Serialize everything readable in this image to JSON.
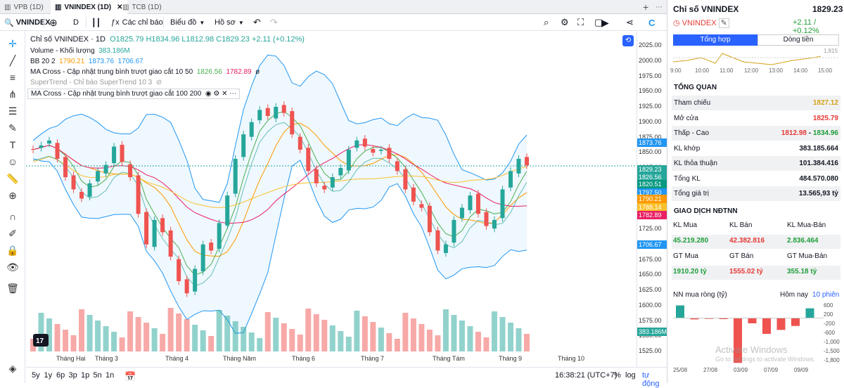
{
  "tabs": [
    {
      "label": "VPB (1D)"
    },
    {
      "label": "VNINDEX (1D)"
    },
    {
      "label": "TCB (1D)"
    }
  ],
  "toolbar": {
    "symbol": "VNINDEX",
    "interval": "D",
    "indicators": "Các chỉ báo",
    "chart_type": "Biểu đồ",
    "profile": "Hồ sơ"
  },
  "legend": {
    "title": "Chỉ số VNINDEX · 1D",
    "ohlc": "O1825.79 H1834.96 L1812.98 C1829.23 +2.11 (+0.12%)",
    "volume_label": "Volume - Khối lượng",
    "volume_value": "383.186M",
    "bb_label": "BB 20 2",
    "bb_v1": "1790.21",
    "bb_v2": "1873.76",
    "bb_v3": "1706.67",
    "ma1_label": "MA Cross - Cập nhật trung bình trượt giao cắt 10 50",
    "ma1_v1": "1826.56",
    "ma1_v2": "1782.89",
    "ma1_v3": "ø",
    "st_label": "SuperTrend - Chỉ báo SuperTrend 10 3",
    "ma2_label": "MA Cross - Cập nhật trung bình trượt giao cắt 100 200"
  },
  "price_axis": {
    "labels": [
      "2025.00",
      "2000.00",
      "1975.00",
      "1950.00",
      "1925.00",
      "1900.00",
      "1875.00",
      "1850.00",
      "1825.00",
      "1800.00",
      "1775.00",
      "1750.00",
      "1725.00",
      "1700.00",
      "1675.00",
      "1650.00",
      "1625.00",
      "1600.00",
      "1575.00",
      "1550.00",
      "1525.00"
    ],
    "badges": [
      {
        "value": "1873.76",
        "color": "#2196f3"
      },
      {
        "value": "1829.23",
        "color": "#26a69a"
      },
      {
        "value": "1826.56",
        "color": "#26a69a"
      },
      {
        "value": "1820.51",
        "color": "#089981"
      },
      {
        "value": "1797.50",
        "color": "#2196f3"
      },
      {
        "value": "1790.21",
        "color": "#ff9800"
      },
      {
        "value": "1788.14",
        "color": "#fbc02d"
      },
      {
        "value": "1782.89",
        "color": "#e91e63"
      },
      {
        "value": "1706.67",
        "color": "#2196f3"
      },
      {
        "value": "383.186M",
        "color": "#26a69a"
      }
    ]
  },
  "time_axis": [
    "Tháng Hai",
    "Tháng 3",
    "Tháng 4",
    "Tháng Năm",
    "Tháng 6",
    "Tháng 7",
    "Tháng Tám",
    "Tháng 9",
    "Tháng 10"
  ],
  "bottom": {
    "ranges": [
      "5y",
      "1y",
      "6p",
      "3p",
      "1p",
      "5n",
      "1n"
    ],
    "time": "16:38:21 (UTC+7)",
    "pct": "%",
    "log": "log",
    "auto": "tự động"
  },
  "chart_data": {
    "type": "candlestick",
    "title": "Chỉ số VNINDEX · 1D",
    "ylim": [
      1525,
      2025
    ],
    "y_ticks": [
      2025,
      2000,
      1975,
      1950,
      1925,
      1900,
      1875,
      1850,
      1825,
      1800,
      1775,
      1750,
      1725,
      1700,
      1675,
      1650,
      1625,
      1600,
      1575,
      1550,
      1525
    ],
    "x_tick_labels": [
      "Tháng Hai",
      "Tháng 3",
      "Tháng 4",
      "Tháng Năm",
      "Tháng 6",
      "Tháng 7",
      "Tháng Tám",
      "Tháng 9",
      "Tháng 10"
    ],
    "close_path": [
      1855,
      1862,
      1870,
      1840,
      1810,
      1790,
      1775,
      1800,
      1820,
      1830,
      1860,
      1835,
      1810,
      1750,
      1700,
      1740,
      1720,
      1680,
      1640,
      1620,
      1660,
      1700,
      1690,
      1735,
      1780,
      1840,
      1880,
      1900,
      1920,
      1910,
      1925,
      1915,
      1880,
      1855,
      1820,
      1800,
      1790,
      1810,
      1825,
      1855,
      1870,
      1860,
      1850,
      1855,
      1840,
      1820,
      1790,
      1770,
      1760,
      1720,
      1690,
      1700,
      1740,
      1760,
      1780,
      1750,
      1730,
      1740,
      1790,
      1820,
      1840,
      1829.23
    ],
    "last": {
      "open": 1825.79,
      "high": 1834.96,
      "low": 1812.98,
      "close": 1829.23,
      "change": "+2.11",
      "change_pct": "+0.12%"
    },
    "volume_last": "383.186M",
    "bollinger": {
      "basis": 1790.21,
      "upper": 1873.76,
      "lower": 1706.67
    },
    "ma_cross_10_50": {
      "ma10": 1826.56,
      "ma50": 1782.89
    }
  },
  "panel": {
    "title": "Chỉ số VNINDEX",
    "price": "1829.23",
    "symbol": "VNINDEX",
    "change": "+2.11 / +0.12%",
    "tab1": "Tổng hợp",
    "tab2": "Dòng tiền",
    "mini_ticks": [
      "9:00",
      "10:00",
      "11:00",
      "12:00",
      "13:00",
      "14:00",
      "15:00"
    ],
    "mini_right": "1,815",
    "overview_title": "TỔNG QUAN",
    "rows": [
      {
        "label": "Tham chiếu",
        "value": "1827.12",
        "cls": "gold"
      },
      {
        "label": "Mở cửa",
        "value": "1825.79",
        "cls": "red"
      },
      {
        "label": "Thấp - Cao",
        "value": "1812.98",
        "value2": "1834.96"
      },
      {
        "label": "KL khớp",
        "value": "383.185.664"
      },
      {
        "label": "KL thỏa thuận",
        "value": "101.384.416"
      },
      {
        "label": "Tổng KL",
        "value": "484.570.080"
      },
      {
        "label": "Tổng giá trị",
        "value": "13.565,93 tỷ"
      }
    ],
    "foreign_title": "GIAO DỊCH NĐTNN",
    "f_h1": [
      "KL Mua",
      "KL Bán",
      "KL Mua-Bán"
    ],
    "f_v1": [
      "45.219.280",
      "42.382.816",
      "2.836.464"
    ],
    "f_h2": [
      "GT Mua",
      "GT Bán",
      "GT Mua-Bán"
    ],
    "f_v2": [
      "1910.20 tỷ",
      "1555.02 tỷ",
      "355.18 tỷ"
    ],
    "net_title": "NN mua ròng (tỷ)",
    "today": "Hôm nay",
    "sessions": "10 phiên",
    "net_values": [
      480,
      -50,
      -30,
      -40,
      -1700,
      -200,
      -600,
      -450,
      -300,
      370
    ],
    "net_axis": [
      "600",
      "200",
      "-200",
      "-600",
      "-1,000",
      "-1,500",
      "-1,800"
    ],
    "net_dates": [
      "25/08",
      "27/08",
      "03/09",
      "07/09",
      "09/09"
    ],
    "watermark1": "Activate Windows",
    "watermark2": "Go to Settings to activate Windows."
  }
}
